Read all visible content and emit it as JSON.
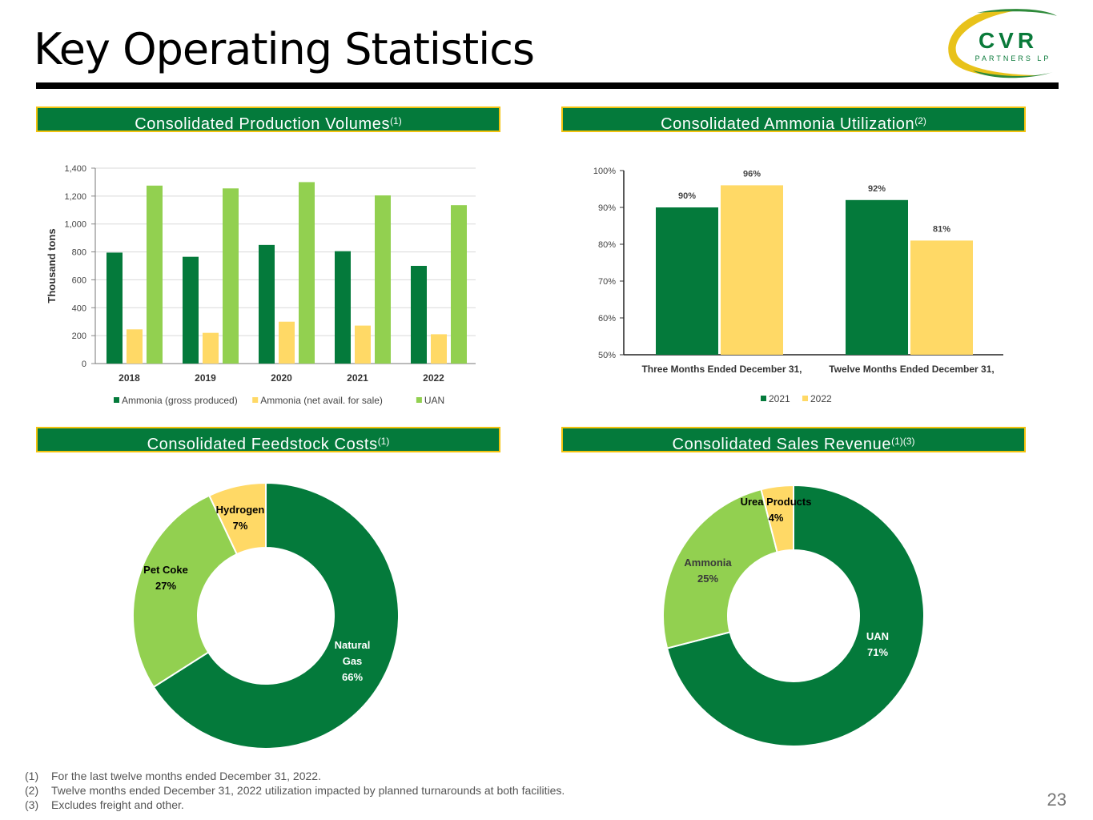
{
  "slide": {
    "title": "Key Operating Statistics",
    "page_number": "23",
    "logo": {
      "main": "CVR",
      "sub": "PARTNERS LP"
    }
  },
  "panels": {
    "production": {
      "title": "Consolidated Production Volumes",
      "note": "(1)"
    },
    "utilization": {
      "title": "Consolidated Ammonia Utilization",
      "note": "(2)"
    },
    "feedstock": {
      "title": "Consolidated Feedstock Costs",
      "note": "(1)"
    },
    "revenue": {
      "title": "Consolidated Sales Revenue",
      "note": "(1)(3)"
    }
  },
  "colors": {
    "dark_green": "#047a3b",
    "light_green": "#92d050",
    "yellow": "#ffd966",
    "header_border": "#f2c20e"
  },
  "chart_data": [
    {
      "id": "production",
      "type": "bar",
      "categories": [
        "2018",
        "2019",
        "2020",
        "2021",
        "2022"
      ],
      "series": [
        {
          "name": "Ammonia (gross produced)",
          "values": [
            795,
            765,
            850,
            805,
            700
          ],
          "color": "#047a3b"
        },
        {
          "name": "Ammonia (net avail. for sale)",
          "values": [
            245,
            220,
            300,
            272,
            210
          ],
          "color": "#ffd966"
        },
        {
          "name": "UAN",
          "values": [
            1275,
            1255,
            1300,
            1205,
            1135
          ],
          "color": "#92d050"
        }
      ],
      "ylabel": "Thousand tons",
      "ylim": [
        0,
        1400
      ],
      "yticks": [
        0,
        200,
        400,
        600,
        800,
        1000,
        1200,
        1400
      ],
      "ytick_labels": [
        "0",
        "200",
        "400",
        "600",
        "800",
        "1,000",
        "1,200",
        "1,400"
      ],
      "grid": true,
      "legend": "bottom"
    },
    {
      "id": "utilization",
      "type": "bar",
      "categories": [
        "Three Months Ended December 31,",
        "Twelve Months Ended December 31,"
      ],
      "series": [
        {
          "name": "2021",
          "values": [
            90,
            92
          ],
          "labels": [
            "90%",
            "92%"
          ],
          "color": "#047a3b"
        },
        {
          "name": "2022",
          "values": [
            96,
            81
          ],
          "labels": [
            "96%",
            "81%"
          ],
          "color": "#ffd966"
        }
      ],
      "ylim": [
        50,
        100
      ],
      "yticks": [
        50,
        60,
        70,
        80,
        90,
        100
      ],
      "ytick_labels": [
        "50%",
        "60%",
        "70%",
        "80%",
        "90%",
        "100%"
      ],
      "legend": "bottom"
    },
    {
      "id": "feedstock",
      "type": "pie",
      "slices": [
        {
          "label": "Natural Gas",
          "value": 66,
          "text": "66%",
          "color": "#047a3b"
        },
        {
          "label": "Pet Coke",
          "value": 27,
          "text": "27%",
          "color": "#92d050"
        },
        {
          "label": "Hydrogen",
          "value": 7,
          "text": "7%",
          "color": "#ffd966"
        }
      ]
    },
    {
      "id": "revenue",
      "type": "pie",
      "slices": [
        {
          "label": "UAN",
          "value": 71,
          "text": "71%",
          "color": "#047a3b"
        },
        {
          "label": "Ammonia",
          "value": 25,
          "text": "25%",
          "color": "#92d050"
        },
        {
          "label": "Urea Products",
          "value": 4,
          "text": "4%",
          "color": "#ffd966"
        }
      ]
    }
  ],
  "footnotes": [
    {
      "num": "(1)",
      "text": "For the last twelve months ended December 31, 2022."
    },
    {
      "num": "(2)",
      "text": "Twelve months ended December 31, 2022 utilization impacted by planned turnarounds at both facilities."
    },
    {
      "num": "(3)",
      "text": "Excludes freight and other."
    }
  ]
}
